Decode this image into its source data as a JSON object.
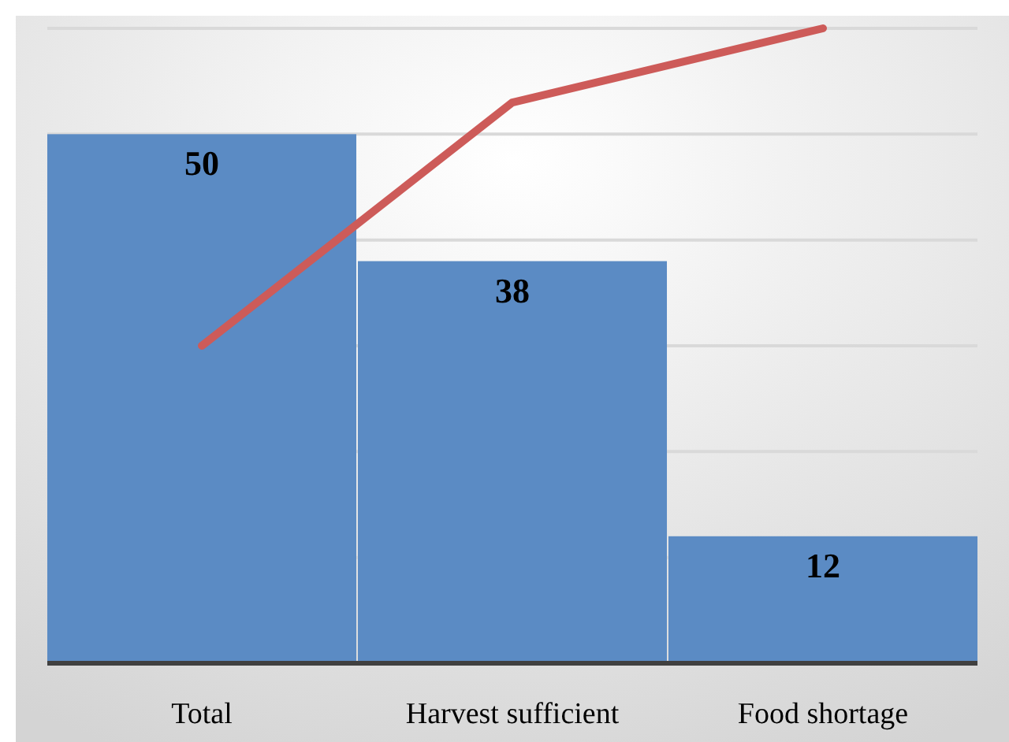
{
  "chart_data": {
    "type": "bar",
    "categories": [
      "Total",
      "Harvest sufficient",
      "Food shortage"
    ],
    "series": [
      {
        "color": "#5b8bc4",
        "values": [
          50,
          38,
          12
        ],
        "value_labels": [
          "50",
          "38",
          "12"
        ]
      },
      {
        "type": "line",
        "color": "#cd5b59",
        "values": [
          30,
          53,
          60
        ]
      }
    ],
    "ylim": [
      0,
      60
    ],
    "yticks": [
      {
        "value": 0,
        "label": null
      },
      {
        "value": 10,
        "label": null
      },
      {
        "value": 20,
        "label": null
      },
      {
        "value": 30,
        "label": null
      },
      {
        "value": 40,
        "label": null
      },
      {
        "value": 50,
        "label": null
      },
      {
        "value": 60,
        "label": null
      }
    ],
    "tick_labels": "x",
    "grid": "y",
    "marker": "none",
    "line_style": "solid"
  }
}
